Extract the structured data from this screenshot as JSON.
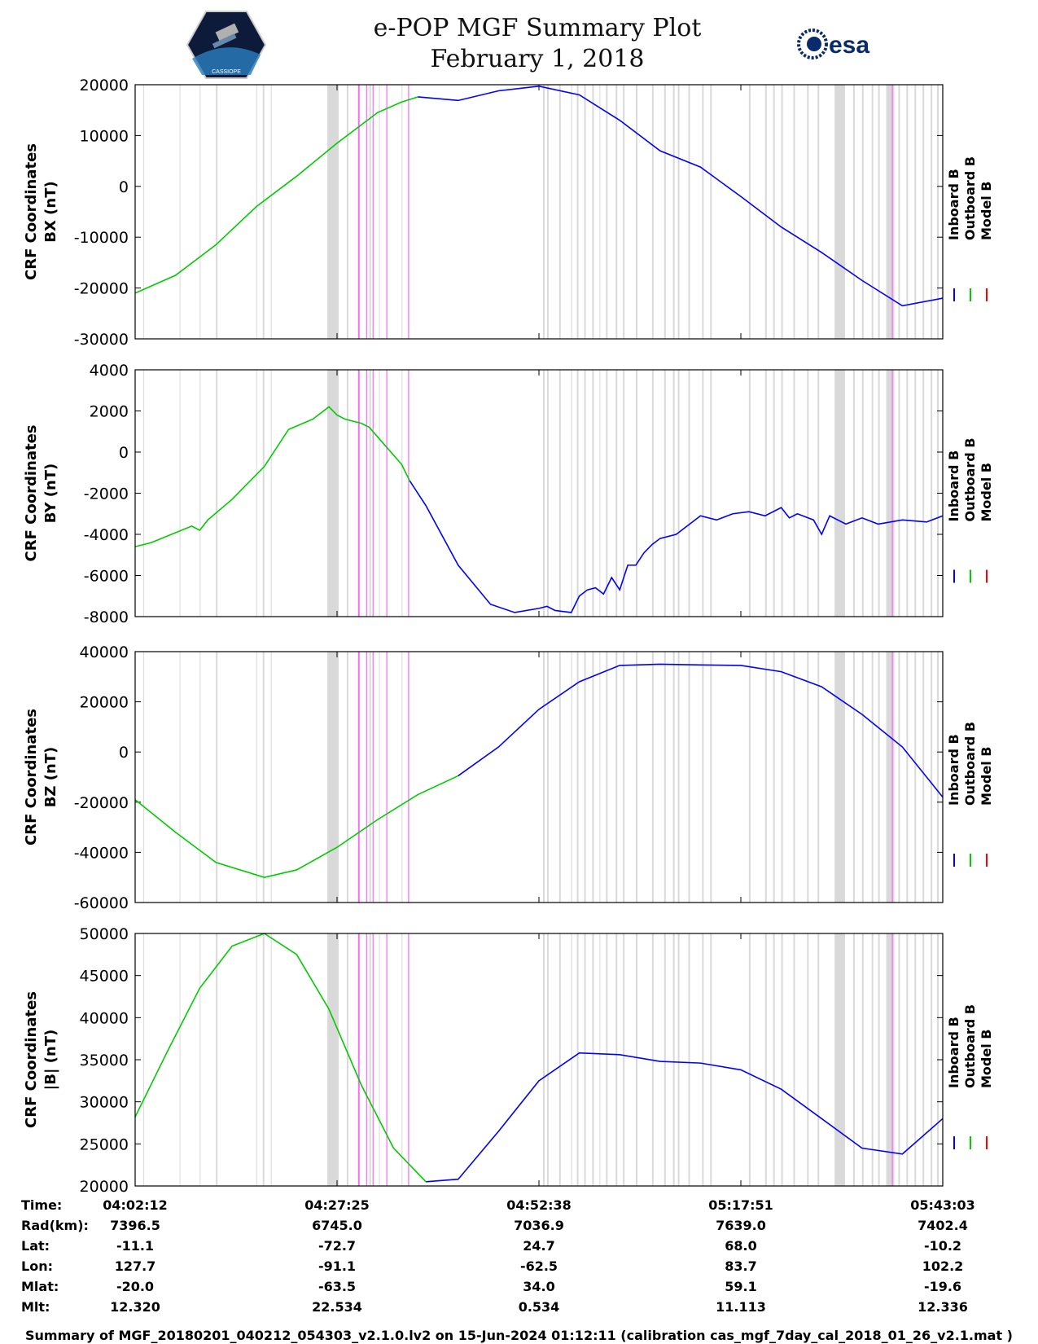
{
  "header": {
    "title_line1": "e-POP MGF Summary Plot",
    "title_line2": "February 1, 2018",
    "logo_left_text": "CASSIOPE",
    "logo_right_text": "esa"
  },
  "colors": {
    "inboard": "#0000ff",
    "outboard": "#00cc00",
    "model": "#ff0000",
    "gray_band": "#d9d9d9",
    "magenta_band": "#ff66ff"
  },
  "legend": [
    "Inboard B",
    "Outboard B",
    "Model B"
  ],
  "time_table": {
    "row_labels": [
      "Time:",
      "Rad(km):",
      "Lat:",
      "Lon:",
      "Mlat:",
      "Mlt:"
    ],
    "columns": [
      {
        "values": [
          "04:02:12",
          "7396.5",
          "-11.1",
          "127.7",
          "-20.0",
          "12.320"
        ]
      },
      {
        "values": [
          "04:27:25",
          "6745.0",
          "-72.7",
          "-91.1",
          "-63.5",
          "22.534"
        ]
      },
      {
        "values": [
          "04:52:38",
          "7036.9",
          "24.7",
          "-62.5",
          "34.0",
          "0.534"
        ]
      },
      {
        "values": [
          "05:17:51",
          "7639.0",
          "68.0",
          "83.7",
          "59.1",
          "11.113"
        ]
      },
      {
        "values": [
          "05:43:03",
          "7402.4",
          "-10.2",
          "102.2",
          "-19.6",
          "12.336"
        ]
      }
    ]
  },
  "footer": "Summary of MGF_20180201_040212_054303_v2.1.0.lv2 on 15-Jun-2024 01:12:11 (calibration cas_mgf_7day_cal_2018_01_26_v2.1.mat )",
  "chart_data": [
    {
      "type": "line",
      "ylabel_line1": "CRF Coordinates",
      "ylabel_line2": "BX (nT)",
      "ylim": [
        -30000,
        20000
      ],
      "yticks": [
        20000,
        10000,
        0,
        -10000,
        -20000,
        -30000
      ],
      "xlim": [
        0,
        100
      ],
      "outboard_until": 38,
      "series": [
        {
          "name": "Inboard B",
          "x": [
            0,
            5,
            10,
            15,
            20,
            25,
            30,
            33,
            35,
            40,
            45,
            50,
            55,
            60,
            65,
            70,
            75,
            80,
            85,
            90,
            95,
            100
          ],
          "values": [
            -21000,
            -17500,
            -11500,
            -4000,
            2000,
            8500,
            14500,
            16600,
            17600,
            16900,
            18800,
            19700,
            18000,
            13000,
            7000,
            3800,
            -2000,
            -8000,
            -13000,
            -18500,
            -23500,
            -22000
          ]
        }
      ]
    },
    {
      "type": "line",
      "ylabel_line1": "CRF Coordinates",
      "ylabel_line2": "BY (nT)",
      "ylim": [
        -8000,
        4000
      ],
      "yticks": [
        4000,
        2000,
        0,
        -2000,
        -4000,
        -6000,
        -8000
      ],
      "xlim": [
        0,
        100
      ],
      "outboard_until": 35,
      "series": [
        {
          "name": "Inboard B",
          "x": [
            0,
            2,
            7,
            8,
            9,
            12,
            16,
            19,
            22,
            24,
            25,
            26,
            28,
            29,
            31,
            33,
            34,
            36,
            40,
            44,
            47,
            50,
            51,
            52,
            54,
            55,
            56,
            57,
            58,
            59,
            60,
            61,
            62,
            63,
            64,
            65,
            67,
            70,
            72,
            74,
            76,
            78,
            80,
            81,
            82,
            84,
            85,
            86,
            88,
            90,
            92,
            95,
            98,
            100
          ],
          "values": [
            -4600,
            -4400,
            -3600,
            -3800,
            -3300,
            -2300,
            -700,
            1100,
            1600,
            2200,
            1800,
            1600,
            1400,
            1200,
            300,
            -600,
            -1400,
            -2600,
            -5500,
            -7400,
            -7800,
            -7600,
            -7500,
            -7700,
            -7800,
            -7000,
            -6700,
            -6600,
            -6900,
            -6100,
            -6700,
            -5500,
            -5500,
            -4900,
            -4500,
            -4200,
            -4000,
            -3100,
            -3300,
            -3000,
            -2900,
            -3100,
            -2700,
            -3200,
            -3000,
            -3300,
            -4000,
            -3100,
            -3500,
            -3200,
            -3500,
            -3300,
            -3400,
            -3100
          ]
        }
      ]
    },
    {
      "type": "line",
      "ylabel_line1": "CRF Coordinates",
      "ylabel_line2": "BZ (nT)",
      "ylim": [
        -60000,
        40000
      ],
      "yticks": [
        40000,
        20000,
        0,
        -20000,
        -40000,
        -60000
      ],
      "xlim": [
        0,
        100
      ],
      "outboard_until": 43,
      "series": [
        {
          "name": "Inboard B",
          "x": [
            0,
            5,
            10,
            16,
            20,
            25,
            30,
            35,
            40,
            45,
            50,
            55,
            60,
            65,
            70,
            75,
            80,
            85,
            90,
            95,
            100
          ],
          "values": [
            -19000,
            -32000,
            -44000,
            -50000,
            -47000,
            -38000,
            -27000,
            -17000,
            -9500,
            2000,
            17000,
            28000,
            34500,
            35000,
            34700,
            34500,
            32000,
            26000,
            15000,
            2000,
            -18000
          ]
        }
      ]
    },
    {
      "type": "line",
      "ylabel_line1": "CRF Coordinates",
      "ylabel_line2": "|B| (nT)",
      "ylim": [
        20000,
        50000
      ],
      "yticks": [
        50000,
        45000,
        40000,
        35000,
        30000,
        25000,
        20000
      ],
      "xlim": [
        0,
        100
      ],
      "outboard_until": 39,
      "series": [
        {
          "name": "Inboard B",
          "x": [
            0,
            4,
            8,
            12,
            16,
            20,
            24,
            28,
            32,
            36,
            40,
            45,
            50,
            55,
            60,
            65,
            70,
            75,
            80,
            85,
            90,
            95,
            100
          ],
          "values": [
            28200,
            36000,
            43500,
            48500,
            50000,
            47500,
            41000,
            32000,
            24500,
            20500,
            20800,
            26500,
            32500,
            35800,
            35600,
            34800,
            34600,
            33800,
            31500,
            28000,
            24500,
            23800,
            28000
          ]
        }
      ]
    }
  ]
}
